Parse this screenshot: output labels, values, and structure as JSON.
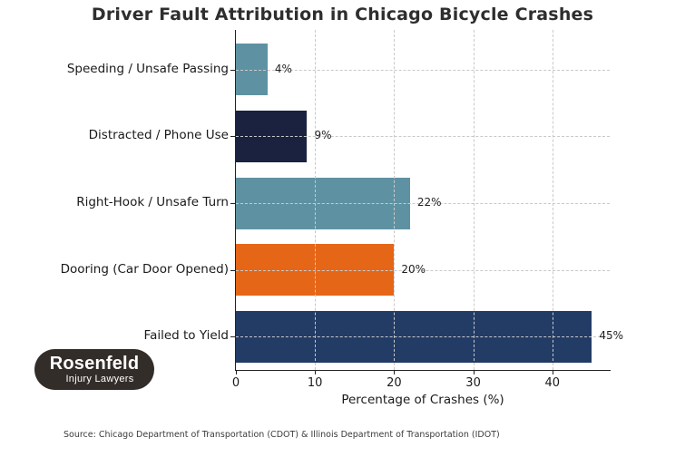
{
  "title": "Driver Fault Attribution in Chicago Bicycle Crashes",
  "chart_data": {
    "type": "bar",
    "orientation": "horizontal",
    "title": "Driver Fault Attribution in Chicago Bicycle Crashes",
    "categories": [
      "Speeding / Unsafe Passing",
      "Distracted / Phone Use",
      "Right-Hook / Unsafe Turn",
      "Dooring (Car Door Opened)",
      "Failed to Yield"
    ],
    "values": [
      4,
      9,
      22,
      20,
      45
    ],
    "value_labels": [
      "4%",
      "9%",
      "22%",
      "20%",
      "45%"
    ],
    "bar_colors": [
      "#5E92A2",
      "#1A2240",
      "#5E92A2",
      "#E56617",
      "#223C66"
    ],
    "xlabel": "Percentage of Crashes (%)",
    "x_ticks": [
      0,
      10,
      20,
      30,
      40
    ],
    "xlim": [
      0,
      47.25
    ],
    "grid": "dashed gridlines on both axes, drawn over bars",
    "legend": "none"
  },
  "logo": {
    "line1": "Rosenfeld",
    "line2": "Injury Lawyers",
    "bg_color": "#332D2A",
    "text_color": "#FFFFFF"
  },
  "source": "Source: Chicago Department of Transportation (CDOT) & Illinois Department of Transportation (IDOT)",
  "colors": {
    "background": "#FFFFFF",
    "title_text": "#2E2E2E",
    "axis_spine": "#222222",
    "gridline": "#C9C9C9",
    "label_text": "#1A1A1A"
  }
}
